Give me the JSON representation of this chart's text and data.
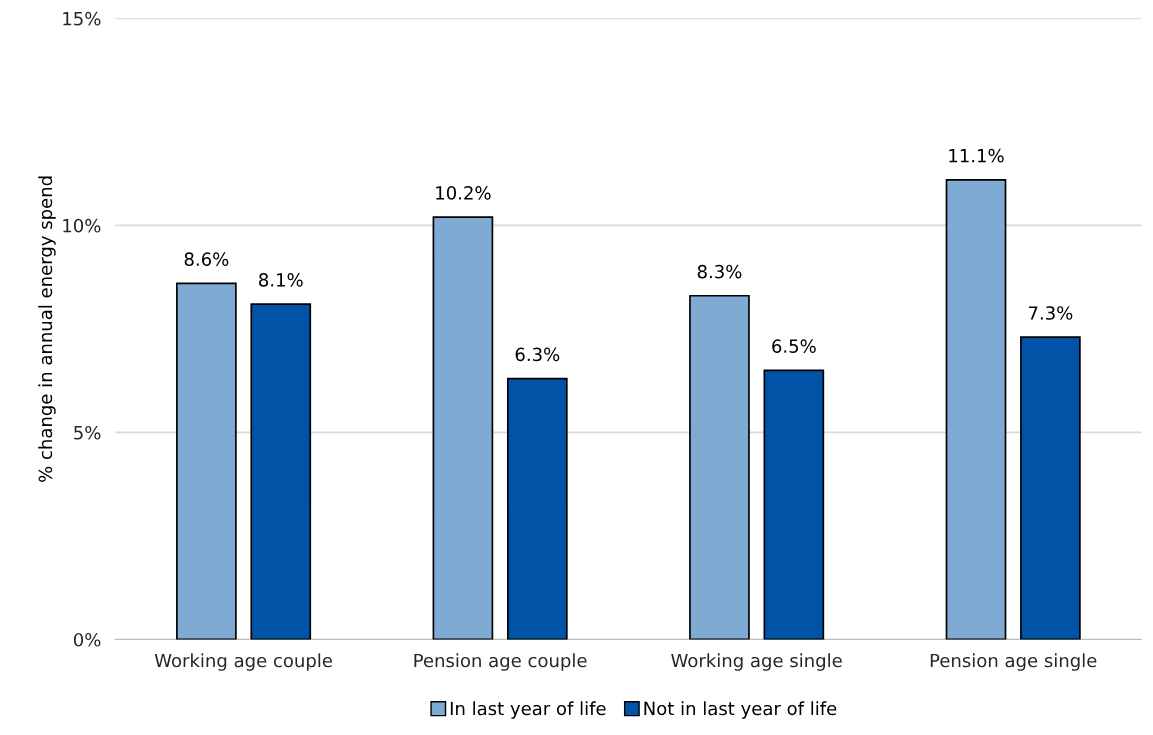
{
  "chart_data": {
    "type": "bar",
    "ylabel": "% change in annual energy spend",
    "categories": [
      "Working age couple",
      "Pension age couple",
      "Working age single",
      "Pension age single"
    ],
    "series": [
      {
        "name": "In last year of life",
        "color": "#7faad4",
        "values": [
          8.6,
          10.2,
          8.3,
          11.1
        ],
        "value_labels": [
          "8.6%",
          "10.2%",
          "8.3%",
          "11.1%"
        ]
      },
      {
        "name": "Not in last year of life",
        "color": "#0053a6",
        "values": [
          8.1,
          6.3,
          6.5,
          7.3
        ],
        "value_labels": [
          "8.1%",
          "6.3%",
          "6.5%",
          "7.3%"
        ]
      }
    ],
    "ylim": [
      0,
      15
    ],
    "yticks": [
      {
        "value": 0,
        "label": "0%"
      },
      {
        "value": 5,
        "label": "5%"
      },
      {
        "value": 10,
        "label": "10%"
      },
      {
        "value": 15,
        "label": "15%"
      }
    ],
    "grid": "y",
    "legend": "bottom"
  }
}
